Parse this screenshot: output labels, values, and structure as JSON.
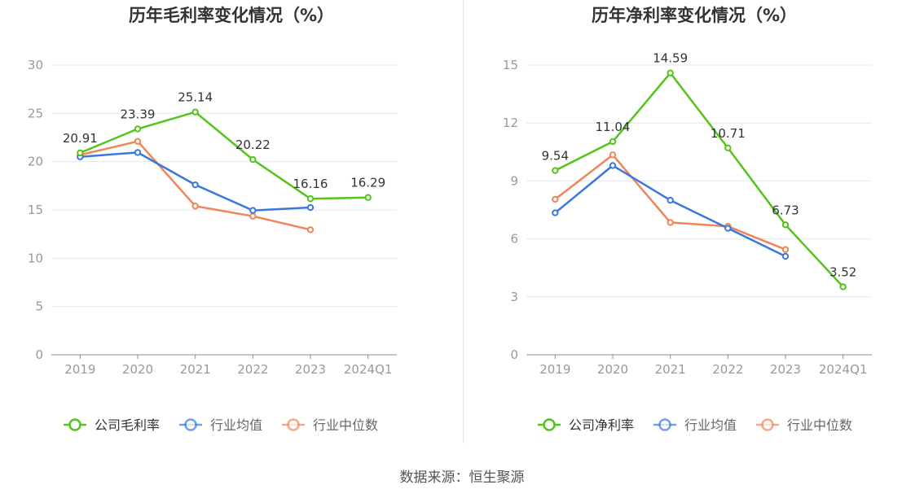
{
  "source_label": "数据来源：恒生聚源",
  "colors": {
    "company": "#52c41a",
    "industry_avg": "#3a78e0",
    "industry_median": "#f0855a",
    "grid": "#e4e7ef",
    "axis": "#8c8c8c",
    "tick_text": "#999999",
    "label_text": "#333333"
  },
  "chart_data": [
    {
      "type": "line",
      "title": "历年毛利率变化情况（%）",
      "categories": [
        "2019",
        "2020",
        "2021",
        "2022",
        "2023",
        "2024Q1"
      ],
      "ylim": [
        0,
        30
      ],
      "yticks": [
        0,
        5,
        10,
        15,
        20,
        25,
        30
      ],
      "grid": true,
      "legend_position": "bottom",
      "series": [
        {
          "name": "公司毛利率",
          "color_key": "company",
          "labeled": true,
          "values": [
            20.91,
            23.39,
            25.14,
            20.22,
            16.16,
            16.29
          ]
        },
        {
          "name": "行业均值",
          "color_key": "industry_avg",
          "labeled": false,
          "values": [
            20.5,
            20.95,
            17.6,
            14.95,
            15.25,
            null
          ]
        },
        {
          "name": "行业中位数",
          "color_key": "industry_median",
          "labeled": false,
          "values": [
            20.7,
            22.1,
            15.4,
            14.35,
            12.95,
            null
          ]
        }
      ]
    },
    {
      "type": "line",
      "title": "历年净利率变化情况（%）",
      "categories": [
        "2019",
        "2020",
        "2021",
        "2022",
        "2023",
        "2024Q1"
      ],
      "ylim": [
        0,
        15
      ],
      "yticks": [
        0,
        3,
        6,
        9,
        12,
        15
      ],
      "grid": true,
      "legend_position": "bottom",
      "series": [
        {
          "name": "公司净利率",
          "color_key": "company",
          "labeled": true,
          "values": [
            9.54,
            11.04,
            14.59,
            10.71,
            6.73,
            3.52
          ]
        },
        {
          "name": "行业均值",
          "color_key": "industry_avg",
          "labeled": false,
          "values": [
            7.35,
            9.8,
            8.0,
            6.55,
            5.1,
            null
          ]
        },
        {
          "name": "行业中位数",
          "color_key": "industry_median",
          "labeled": false,
          "values": [
            8.05,
            10.35,
            6.85,
            6.65,
            5.45,
            null
          ]
        }
      ]
    }
  ]
}
